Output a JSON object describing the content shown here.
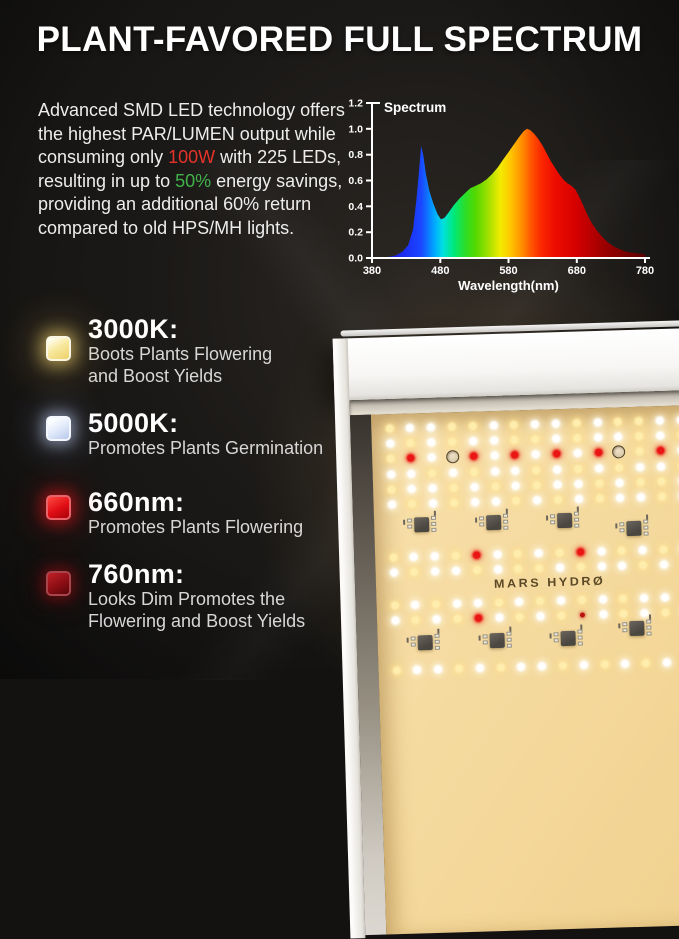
{
  "title": "PLANT-FAVORED FULL SPECTRUM",
  "description": {
    "lines": [
      [
        {
          "t": "Advanced SMD LED technology offers"
        }
      ],
      [
        {
          "t": "the highest PAR/LUMEN output while"
        }
      ],
      [
        {
          "t": "consuming only "
        },
        {
          "t": "100W",
          "c": "red"
        },
        {
          "t": " with 225 LEDs,"
        }
      ],
      [
        {
          "t": "resulting in up to "
        },
        {
          "t": "50%",
          "c": "green"
        },
        {
          "t": " energy savings,"
        }
      ],
      [
        {
          "t": "providing an additional 60% return"
        }
      ],
      [
        {
          "t": "compared to old HPS/MH lights."
        }
      ]
    ],
    "highlight_colors": {
      "red": "#e3332b",
      "green": "#3fb24a"
    }
  },
  "chart_data": {
    "type": "area",
    "title": "Spectrum",
    "xlabel": "Wavelength(nm)",
    "ylabel": "",
    "xlim": [
      380,
      780
    ],
    "ylim": [
      0,
      1.2
    ],
    "x_ticks": [
      "380",
      "480",
      "580",
      "680",
      "780"
    ],
    "y_ticks": [
      "0.0",
      "0.2",
      "0.4",
      "0.6",
      "0.8",
      "1.0",
      "1.2"
    ],
    "grid": false,
    "legend": false,
    "points": [
      [
        380,
        0
      ],
      [
        405,
        0.01
      ],
      [
        415,
        0.02
      ],
      [
        425,
        0.05
      ],
      [
        433,
        0.1
      ],
      [
        440,
        0.22
      ],
      [
        445,
        0.45
      ],
      [
        449,
        0.68
      ],
      [
        452,
        0.87
      ],
      [
        455,
        0.8
      ],
      [
        459,
        0.65
      ],
      [
        464,
        0.52
      ],
      [
        470,
        0.42
      ],
      [
        476,
        0.34
      ],
      [
        481,
        0.3
      ],
      [
        486,
        0.31
      ],
      [
        492,
        0.35
      ],
      [
        500,
        0.41
      ],
      [
        508,
        0.46
      ],
      [
        516,
        0.5
      ],
      [
        524,
        0.54
      ],
      [
        532,
        0.56
      ],
      [
        540,
        0.58
      ],
      [
        548,
        0.61
      ],
      [
        556,
        0.65
      ],
      [
        564,
        0.7
      ],
      [
        572,
        0.76
      ],
      [
        580,
        0.82
      ],
      [
        588,
        0.88
      ],
      [
        596,
        0.94
      ],
      [
        602,
        0.98
      ],
      [
        607,
        1.0
      ],
      [
        612,
        0.99
      ],
      [
        618,
        0.96
      ],
      [
        624,
        0.92
      ],
      [
        630,
        0.87
      ],
      [
        636,
        0.81
      ],
      [
        642,
        0.75
      ],
      [
        648,
        0.7
      ],
      [
        654,
        0.65
      ],
      [
        660,
        0.61
      ],
      [
        666,
        0.58
      ],
      [
        672,
        0.56
      ],
      [
        678,
        0.53
      ],
      [
        684,
        0.47
      ],
      [
        690,
        0.4
      ],
      [
        696,
        0.33
      ],
      [
        702,
        0.27
      ],
      [
        710,
        0.21
      ],
      [
        718,
        0.16
      ],
      [
        726,
        0.12
      ],
      [
        734,
        0.09
      ],
      [
        742,
        0.07
      ],
      [
        752,
        0.05
      ],
      [
        762,
        0.04
      ],
      [
        772,
        0.035
      ],
      [
        780,
        0.03
      ]
    ],
    "gradient": [
      [
        0,
        "#1a10a8"
      ],
      [
        0.12,
        "#1b2df2"
      ],
      [
        0.18,
        "#1b46ff"
      ],
      [
        0.23,
        "#00aaff"
      ],
      [
        0.26,
        "#00e0e0"
      ],
      [
        0.3,
        "#00e87a"
      ],
      [
        0.34,
        "#2ade2a"
      ],
      [
        0.38,
        "#55d800"
      ],
      [
        0.43,
        "#a8e000"
      ],
      [
        0.47,
        "#f2ec00"
      ],
      [
        0.51,
        "#ffc400"
      ],
      [
        0.55,
        "#ff8c00"
      ],
      [
        0.58,
        "#ff5a00"
      ],
      [
        0.62,
        "#fa2800"
      ],
      [
        0.67,
        "#ee0c00"
      ],
      [
        0.75,
        "#d40000"
      ],
      [
        0.85,
        "#9c0000"
      ],
      [
        1,
        "#5a0000"
      ]
    ]
  },
  "features": [
    {
      "heading": "3000K:",
      "lines": [
        "Boots Plants Flowering",
        "and Boost Yields"
      ],
      "icon": "warm-white-led-icon",
      "style": "warm",
      "swatch": "#f8e9a0"
    },
    {
      "heading": "5000K:",
      "lines": [
        "Promotes Plants Germination"
      ],
      "icon": "cool-white-led-icon",
      "style": "cool",
      "swatch": "#e6edfb"
    },
    {
      "heading": "660nm:",
      "lines": [
        "Promotes Plants Flowering"
      ],
      "icon": "red-led-icon",
      "style": "red",
      "swatch": "#e00d14"
    },
    {
      "heading": "760nm:",
      "lines": [
        "Looks Dim Promotes the",
        "Flowering and Boost Yields"
      ],
      "icon": "deep-red-led-icon",
      "style": "deepred",
      "swatch": "#8c0e14"
    }
  ],
  "panel": {
    "brand": "MARS HYDRØ",
    "board_color": "#f3d697",
    "led_colors": {
      "white": "#ffffff",
      "warm": "#ffedae",
      "red": "#ea1515",
      "dim_red": "#b51010"
    },
    "cols": 15,
    "col_start": 18,
    "col_pitch": 20.8,
    "rows": [
      {
        "type": "leds",
        "y": 14,
        "p": "YWWYYWYWWYWYYWW"
      },
      {
        "type": "leds",
        "y": 29,
        "p": "WYWYWWYYWYWWYWY"
      },
      {
        "type": "leds",
        "y": 44,
        "p": "YRWORWRWRWROYRW"
      },
      {
        "type": "leds",
        "y": 60,
        "p": "WWYWYWWYWYWYWWY"
      },
      {
        "type": "leds",
        "y": 75,
        "p": "YWWYWYWYWWYWYYW"
      },
      {
        "type": "leds",
        "y": 90,
        "p": "WYWYWWYWYWYWWYW"
      },
      {
        "type": "chips",
        "y": 112,
        "chips": [
          [
            48,
            0
          ],
          [
            120,
            0
          ],
          [
            191,
            0
          ],
          [
            260,
            10
          ]
        ]
      },
      {
        "type": "leds",
        "y": 143,
        "p": "YWWYRWYWYRWYWYW"
      },
      {
        "type": "leds",
        "y": 158,
        "p": "WYWWYWYYWYWWYWY"
      },
      {
        "type": "logo",
        "y": 174
      },
      {
        "type": "leds",
        "y": 191,
        "p": "YWYWWYWYWYWYWWY"
      },
      {
        "type": "leds",
        "y": 206,
        "p": "WYWYRWYWYrWYWYW"
      },
      {
        "type": "chips",
        "y": 230,
        "chips": [
          [
            48,
            0
          ],
          [
            120,
            0
          ],
          [
            191,
            0
          ],
          [
            260,
            -8
          ]
        ]
      },
      {
        "type": "leds",
        "y": 256,
        "p": "YWWYWYWWYWYWYWY"
      }
    ]
  }
}
